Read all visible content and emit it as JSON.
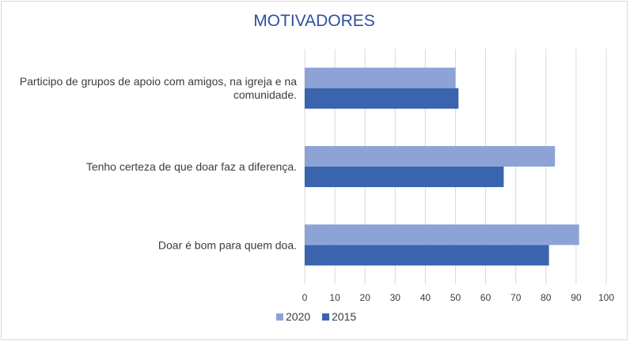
{
  "chart_data": {
    "type": "bar",
    "orientation": "horizontal",
    "title": "MOTIVADORES",
    "categories": [
      "Participo de grupos de apoio com amigos, na igreja e na comunidade.",
      "Tenho certeza de que doar faz a diferença.",
      "Doar é bom para quem doa."
    ],
    "category_lines": [
      [
        "Participo de grupos de apoio com amigos, na igreja e na",
        "comunidade."
      ],
      [
        "Tenho certeza de que doar faz a diferença."
      ],
      [
        "Doar é bom para quem doa."
      ]
    ],
    "series": [
      {
        "name": "2020",
        "values": [
          50,
          83,
          91
        ],
        "color": "#8ea3d5"
      },
      {
        "name": "2015",
        "values": [
          51,
          66,
          81
        ],
        "color": "#3a64ad"
      }
    ],
    "xlim": [
      0,
      100
    ],
    "xticks": [
      "0",
      "10",
      "20",
      "30",
      "40",
      "50",
      "60",
      "70",
      "80",
      "90",
      "100"
    ],
    "grid": true,
    "legend_position": "bottom",
    "title_color": "#2f4f9e",
    "text_color": "#3b3b3b",
    "grid_color": "#d9d9d9"
  }
}
